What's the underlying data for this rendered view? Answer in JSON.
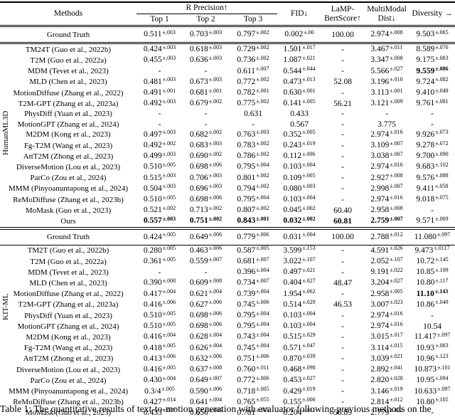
{
  "header": {
    "methods": "Methods",
    "r_precision": "R Precision↑",
    "top1": "Top 1",
    "top2": "Top 2",
    "top3": "Top 3",
    "fid": "FID↓",
    "lamp_line1": "LaMP-",
    "lamp_line2": "BertScore↑",
    "mm_line1": "MultiModal",
    "mm_line2": "Dist↓",
    "diversity": "Diversity →"
  },
  "sections": [
    {
      "label": "HumanML3D",
      "rows": [
        {
          "method": "Ground Truth",
          "cells": [
            "0.511^±.003",
            "0.703^±.003",
            "0.797^±.002",
            "0.002^±.00",
            "100.00",
            "2.974^±.008",
            "9.503^±.065"
          ]
        },
        {
          "method": "TM24T (Guo et al., 2022b)",
          "cells": [
            "0.424^±.003",
            "0.618^±.003",
            "0.729^±.002",
            "1.501^±.017",
            "-",
            "3.467^±.011",
            "8.589^±.076"
          ]
        },
        {
          "method": "T2M (Guo et al., 2022a)",
          "cells": [
            "0.455^±.003",
            "0.636^±.003",
            "0.736^±.002",
            "1.087^±.021",
            "-",
            "3.347^±.008",
            "9.175^±.083"
          ]
        },
        {
          "method": "MDM (Tevet et al., 2023)",
          "cells": [
            "-",
            "-",
            "0.611^±.007",
            "0.544^±.044",
            "-",
            "5.566^±.027",
            "*9.559^±.086"
          ]
        },
        {
          "method": "MLD (Chen et al., 2023)",
          "cells": [
            "0.481^±.003",
            "0.673^±.003",
            "0.772^±.002",
            "0.473^±.013",
            "52.08",
            "3.196^±.010",
            "9.724^±.082"
          ]
        },
        {
          "method": "MotionDiffuse (Zhang et al., 2022)",
          "cells": [
            "0.491^±.001",
            "0.681^±.001",
            "0.782^±.001",
            "0.630^±.001",
            "-",
            "3.113^±.001",
            "9.410^±.049"
          ]
        },
        {
          "method": "T2M-GPT (Zhang et al., 2023a)",
          "cells": [
            "0.492^±.003",
            "0.679^±.002",
            "0.775^±.002",
            "0.141^±.005",
            "56.21",
            "3.121^±.009",
            "9.761^±.081"
          ]
        },
        {
          "method": "PhysDiff (Yuan et al., 2023)",
          "cells": [
            "-",
            "-",
            "0.631",
            "0.433",
            "-",
            "-",
            "-"
          ]
        },
        {
          "method": "MotionGPT (Zhang et al., 2024)",
          "cells": [
            "-",
            "-",
            "-",
            "0.567",
            "-",
            "3.775",
            "-"
          ]
        },
        {
          "method": "M2DM (Kong et al., 2023)",
          "cells": [
            "0.497^±.003",
            "0.682^±.002",
            "0.763^±.003",
            "0.352^±.005",
            "-",
            "2.974^±.016",
            "9.926^±.073"
          ]
        },
        {
          "method": "Fg-T2M (Wang et al., 2023)",
          "cells": [
            "0.492^±.002",
            "0.683^±.003",
            "0.783^±.002",
            "0.243^±.019",
            "-",
            "3.109^±.007",
            "9.278^±.072"
          ]
        },
        {
          "method": "AttT2M (Zhong et al., 2023)",
          "cells": [
            "0.499^±.003",
            "0.690^±.002",
            "0.786^±.002",
            "0.112^±.006",
            "-",
            "3.038^±.007",
            "9.700^±.090"
          ]
        },
        {
          "method": "DiverseMotion (Lou et al., 2023)",
          "cells": [
            "0.510^±.005",
            "0.698^±.006",
            "0.795^±.004",
            "0.103^±.004",
            "-",
            "2.974^±.016",
            "9.683^±.102"
          ]
        },
        {
          "method": "ParCo (Zou et al., 2024)",
          "cells": [
            "0.515^±.003",
            "0.706^±.003",
            "0.801^±.002",
            "0.109^±.005",
            "-",
            "2.927^±.008",
            "9.576^±.088"
          ]
        },
        {
          "method": "MMM (Pinyoanuntapong et al., 2024)",
          "cells": [
            "0.504^±.003",
            "0.696^±.003",
            "0.794^±.002",
            "0.080^±.003",
            "-",
            "2.998^±.007",
            "9.411^±.058"
          ]
        },
        {
          "method": "ReMoDiffuse (Zhang et al., 2023b)",
          "cells": [
            "0.510^±.005",
            "0.698^±.006",
            "0.795^±.004",
            "0.103^±.004",
            "-",
            "2.974^±.016",
            "9.018^±.075"
          ]
        },
        {
          "method": "MoMask (Guo et al., 2023)",
          "cells": [
            "0.521^±.002",
            "0.713^±.002",
            "0.807^±.002",
            "0.045^±.002",
            "60.40",
            "2.958^±.008",
            "-"
          ]
        },
        {
          "method": "Ours",
          "cells": [
            "*0.557^±.003",
            "*0.751^±.002",
            "*0.843^±.001",
            "*0.032^±.002",
            "*60.81",
            "*2.759^±.007",
            "9.571^±.069"
          ]
        }
      ]
    },
    {
      "label": "KIT-ML",
      "rows": [
        {
          "method": "Ground Truth",
          "cells": [
            "0.424^±.005",
            "0.649^±.006",
            "0.779^±.006",
            "0.031^±.004",
            "100.00",
            "2.788^±.012",
            "11.080^±.097"
          ]
        },
        {
          "method": "TM2T (Guo et al., 2022b)",
          "cells": [
            "0.280^±.005",
            "0.463^±.006",
            "0.587^±.005",
            "3.599^±.153",
            "-",
            "4.591^±.026",
            "9.473^±.0117"
          ]
        },
        {
          "method": "T2M (Guo et al., 2022a)",
          "cells": [
            "0.361^±.005",
            "0.559^±.007",
            "0.681^±.007",
            "3.022^±.107",
            "-",
            "2.052^±.107",
            "10.72^±.145"
          ]
        },
        {
          "method": "MDM (Tevet et al., 2023)",
          "cells": [
            "-",
            "-",
            "0.396^±.004",
            "0.497^±.021",
            "-",
            "9.191^±.022",
            "10.85^±.109"
          ]
        },
        {
          "method": "MLD (Chen et al., 2023)",
          "cells": [
            "0.390^±.008",
            "0.609^±.008",
            "0.734^±.007",
            "0.404^±.027",
            "48.47",
            "3.204^±.027",
            "10.80^±.117"
          ]
        },
        {
          "method": "MotionDiffuse (Zhang et al., 2022)",
          "cells": [
            "0.417^±.004",
            "0.621^±.004",
            "0.739^±.004",
            "1.954^±.062",
            "-",
            "2.958^±.005",
            "*11.10^±.143"
          ]
        },
        {
          "method": "T2M-GPT (Zhang et al., 2023a)",
          "cells": [
            "0.416^±.006",
            "0.627^±.006",
            "0.745^±.006",
            "0.514^±.029",
            "46.53",
            "3.007^±.023",
            "10.86^±.049"
          ]
        },
        {
          "method": "PhysDiff (Yuan et al., 2023)",
          "cells": [
            "0.510^±.005",
            "0.698^±.006",
            "0.795^±.004",
            "0.103^±.004",
            "-",
            "2.974^±.016",
            "-"
          ]
        },
        {
          "method": "MotionGPT (Zhang et al., 2024)",
          "cells": [
            "0.510^±.005",
            "0.698^±.006",
            "0.795^±.004",
            "0.103^±.004",
            "-",
            "2.974^±.016",
            "10.54"
          ]
        },
        {
          "method": "M2DM (Kong et al., 2023)",
          "cells": [
            "0.416^±.004",
            "0.628^±.004",
            "0.743^±.004",
            "0.515^±.029",
            "-",
            "3.015^±.017",
            "11.417^±.097"
          ]
        },
        {
          "method": "Fg-T2M (Wang et al., 2023)",
          "cells": [
            "0.418^±.005",
            "0.626^±.004",
            "0.745^±.004",
            "0.571^±.047",
            "-",
            "3.114^±.015",
            "10.93^±.083"
          ]
        },
        {
          "method": "AttT2M (Zhong et al., 2023)",
          "cells": [
            "0.413^±.006",
            "0.632^±.006",
            "0.751^±.006",
            "0.870^±.039",
            "-",
            "3.039^±.021",
            "10.96^±.123"
          ]
        },
        {
          "method": "DiverseMotion (Lou et al., 2023)",
          "cells": [
            "0.416^±.005",
            "0.637^±.008",
            "0.760^±.011",
            "0.468^±.098",
            "-",
            "2.892^±.041",
            "10.873^±.101"
          ]
        },
        {
          "method": "ParCo (Zou et al., 2024)",
          "cells": [
            "0.430^±.004",
            "0.649^±.007",
            "0.772^±.006",
            "0.453^±.027",
            "-",
            "2.820^±.028",
            "10.95^±.094"
          ]
        },
        {
          "method": "MMM (Pinyoanuntapong et al., 2024)",
          "cells": [
            "0.3/4^±.005",
            "0.590^±.006",
            "0.718^±.005",
            "0.429^±.019",
            "-",
            "3.146^±.019",
            "10.633^±.097"
          ]
        },
        {
          "method": "ReMoDiffuse (Zhang et al., 2023b)",
          "cells": [
            "0.427^±.014",
            "0.641^±.004",
            "0.765^±.055",
            "0.155^±.006",
            "-",
            "2.814^±.012",
            "10.80^±.105"
          ]
        },
        {
          "method": "MoMask (Guo et al., 2023)",
          "cells": [
            "0.433^±.007",
            "0.656^±.005",
            "0.781^±.005",
            "0.204^±.011",
            "56.89",
            "2.779^±.022",
            "-"
          ]
        },
        {
          "method": "Ours",
          "cells": [
            "*0.479^±.006",
            "*0.691^±.005",
            "*0.826^±.005",
            "*0.141^±.013",
            "*57.54",
            "*2.704^±.018",
            "10.929^±.101"
          ]
        }
      ]
    }
  ],
  "caption": "Table 1: The quantitative results of text-to-motion generation with evaluator following previous methods on the"
}
